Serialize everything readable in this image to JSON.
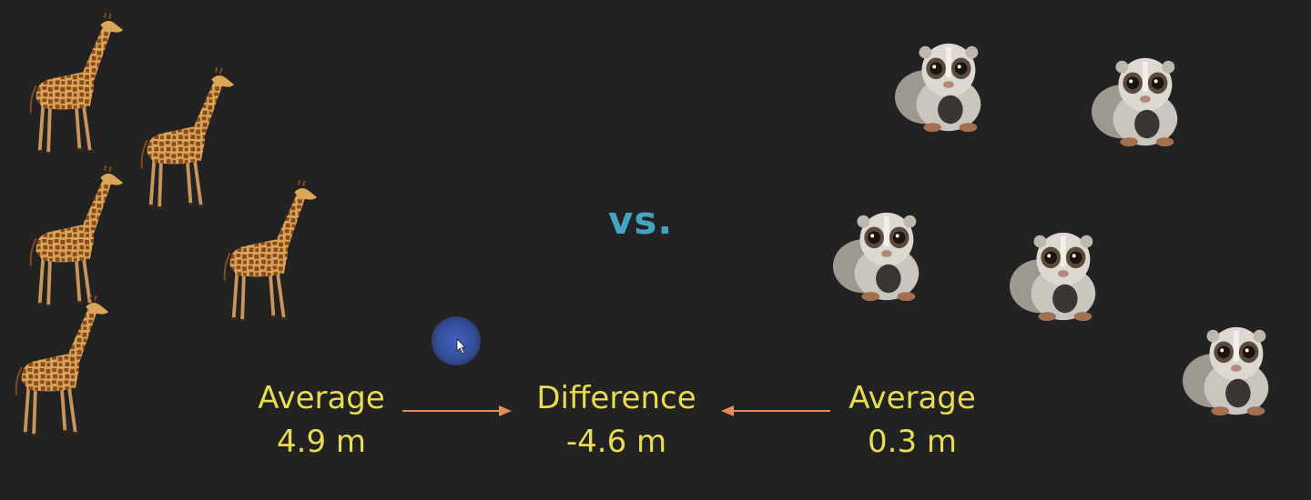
{
  "vs_text": "vs.",
  "left": {
    "label": "Average",
    "value": "4.9 m"
  },
  "middle": {
    "label": "Difference",
    "value": "-4.6 m"
  },
  "right": {
    "label": "Average",
    "value": "0.3 m"
  },
  "colors": {
    "background": "#222222",
    "stat_text": "#e8dc52",
    "vs_text": "#43a4c4",
    "arrow": "#e58a5a",
    "cursor_highlight": "#4464c0"
  },
  "icons": [
    "giraffe-icon",
    "slow-loris-icon",
    "arrow-right-icon",
    "arrow-left-icon",
    "mouse-pointer-icon"
  ]
}
